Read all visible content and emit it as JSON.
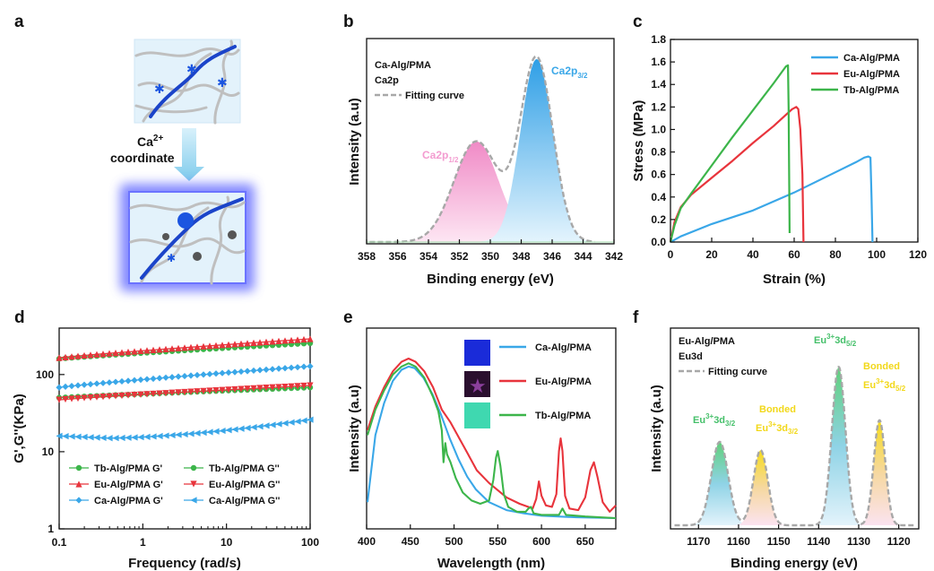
{
  "colors": {
    "ca": "#3aa7e8",
    "eu": "#e8343c",
    "tb": "#3cb54a",
    "fit": "#a8a8a8",
    "yellow": "#f2d81a",
    "fitlabel_green": "#45c06a"
  },
  "panel_labels": [
    "a",
    "b",
    "c",
    "d",
    "e",
    "f"
  ],
  "schematic": {
    "line1": "Ca",
    "sup": "2+",
    "line2": "coordinate",
    "icons": [
      "ion-cluster-icon",
      "polymer-network-icon",
      "coordination-glow-icon"
    ]
  },
  "chart_data": [
    {
      "id": "b",
      "type": "area",
      "xlabel": "Binding energy (eV)",
      "ylabel": "Intensity (a.u)",
      "xlim": [
        358,
        342
      ],
      "x_reversed": true,
      "xticks": [
        358,
        356,
        354,
        352,
        350,
        348,
        346,
        344,
        342
      ],
      "legend": [
        "Ca-Alg/PMA",
        "Ca2p",
        "Fitting curve"
      ],
      "peaks": [
        {
          "label": "Ca2p",
          "sub": "1/2",
          "center": 350.9,
          "height": 0.55,
          "width": 1.45,
          "color": "#f08ac6"
        },
        {
          "label": "Ca2p",
          "sub": "3/2",
          "center": 347.0,
          "height": 1.0,
          "width": 1.05,
          "color": "#3aa7e8"
        }
      ]
    },
    {
      "id": "c",
      "type": "line",
      "xlabel": "Strain (%)",
      "ylabel": "Stress (MPa)",
      "xlim": [
        0,
        120
      ],
      "ylim": [
        0,
        1.8
      ],
      "xticks": [
        0,
        20,
        40,
        60,
        80,
        100,
        120
      ],
      "yticks": [
        0.0,
        0.2,
        0.4,
        0.6,
        0.8,
        1.0,
        1.2,
        1.4,
        1.6,
        1.8
      ],
      "ytick_labels": [
        "0.0",
        "0.2",
        "0.4",
        "0.6",
        "0.8",
        "1.0",
        "1.2",
        "1.4",
        "1.6",
        "1.8"
      ],
      "legend_position": "top-right",
      "series": [
        {
          "name": "Ca-Alg/PMA",
          "color": "#3aa7e8",
          "points": [
            [
              0,
              0
            ],
            [
              5,
              0.05
            ],
            [
              20,
              0.16
            ],
            [
              40,
              0.28
            ],
            [
              60,
              0.44
            ],
            [
              80,
              0.62
            ],
            [
              90,
              0.71
            ],
            [
              94,
              0.75
            ],
            [
              96,
              0.76
            ],
            [
              97,
              0.75
            ],
            [
              97.5,
              0.4
            ],
            [
              98,
              0
            ]
          ]
        },
        {
          "name": "Eu-Alg/PMA",
          "color": "#e8343c",
          "points": [
            [
              0,
              0
            ],
            [
              2,
              0.18
            ],
            [
              5,
              0.31
            ],
            [
              10,
              0.42
            ],
            [
              20,
              0.57
            ],
            [
              30,
              0.72
            ],
            [
              40,
              0.88
            ],
            [
              50,
              1.03
            ],
            [
              56,
              1.13
            ],
            [
              59,
              1.18
            ],
            [
              61,
              1.2
            ],
            [
              62,
              1.18
            ],
            [
              63,
              1.0
            ],
            [
              64,
              0.6
            ],
            [
              64.5,
              0
            ]
          ]
        },
        {
          "name": "Tb-Alg/PMA",
          "color": "#3cb54a",
          "points": [
            [
              0,
              0
            ],
            [
              2,
              0.15
            ],
            [
              5,
              0.3
            ],
            [
              10,
              0.43
            ],
            [
              20,
              0.68
            ],
            [
              30,
              0.93
            ],
            [
              40,
              1.17
            ],
            [
              50,
              1.41
            ],
            [
              54,
              1.51
            ],
            [
              56,
              1.56
            ],
            [
              57,
              1.57
            ],
            [
              57.3,
              1.2
            ],
            [
              57.6,
              0.5
            ],
            [
              57.8,
              0.08
            ]
          ]
        }
      ]
    },
    {
      "id": "d",
      "type": "line",
      "yscale": "log",
      "xscale": "log",
      "xlabel": "Frequency (rad/s)",
      "ylabel": "G',G''(KPa)",
      "xlim": [
        0.1,
        100
      ],
      "ylim": [
        1,
        400
      ],
      "xtick_labels": [
        "0.1",
        "1",
        "10",
        "100"
      ],
      "ytick_labels": [
        "1",
        "10",
        "100"
      ],
      "legend_position": "bottom",
      "series": [
        {
          "name": "Tb-Alg/PMA G'",
          "color": "#3cb54a",
          "marker": "circle",
          "start": 160,
          "end": 255,
          "shape": "rise"
        },
        {
          "name": "Tb-Alg/PMA G''",
          "color": "#3cb54a",
          "marker": "circle",
          "start": 50,
          "end": 68,
          "shape": "rise"
        },
        {
          "name": "Eu-Alg/PMA G'",
          "color": "#e8343c",
          "marker": "triangle-up",
          "start": 165,
          "end": 290,
          "shape": "rise"
        },
        {
          "name": "Eu-Alg/PMA G''",
          "color": "#e8343c",
          "marker": "triangle-down",
          "start": 47,
          "end": 72,
          "shape": "rise"
        },
        {
          "name": "Ca-Alg/PMA G'",
          "color": "#3aa7e8",
          "marker": "diamond",
          "start": 68,
          "end": 128,
          "shape": "rise"
        },
        {
          "name": "Ca-Alg/PMA G''",
          "color": "#3aa7e8",
          "marker": "triangle-left",
          "start": 16,
          "end": 26,
          "shape": "dip"
        }
      ]
    },
    {
      "id": "e",
      "type": "line",
      "xlabel": "Wavelength (nm)",
      "ylabel": "Intensity (a.u)",
      "xlim": [
        400,
        685
      ],
      "xticks": [
        400,
        450,
        500,
        550,
        600,
        650
      ],
      "legend_position": "top-right",
      "insets": [
        "inset-blue-swatch",
        "inset-purple-star",
        "inset-green-swatch"
      ],
      "series": [
        {
          "name": "Ca-Alg/PMA",
          "color": "#3aa7e8",
          "points": [
            [
              401,
              0.1
            ],
            [
              410,
              0.52
            ],
            [
              420,
              0.72
            ],
            [
              430,
              0.86
            ],
            [
              440,
              0.93
            ],
            [
              448,
              0.95
            ],
            [
              455,
              0.94
            ],
            [
              465,
              0.88
            ],
            [
              475,
              0.78
            ],
            [
              485,
              0.65
            ],
            [
              495,
              0.5
            ],
            [
              505,
              0.37
            ],
            [
              515,
              0.26
            ],
            [
              525,
              0.18
            ],
            [
              540,
              0.1
            ],
            [
              560,
              0.05
            ],
            [
              580,
              0.03
            ],
            [
              600,
              0.015
            ],
            [
              640,
              0.005
            ],
            [
              685,
              0.0
            ]
          ]
        },
        {
          "name": "Eu-Alg/PMA",
          "color": "#e8343c",
          "points": [
            [
              401,
              0.55
            ],
            [
              410,
              0.7
            ],
            [
              420,
              0.82
            ],
            [
              430,
              0.92
            ],
            [
              440,
              0.98
            ],
            [
              448,
              1.0
            ],
            [
              456,
              0.98
            ],
            [
              466,
              0.92
            ],
            [
              476,
              0.82
            ],
            [
              486,
              0.68
            ],
            [
              496,
              0.6
            ],
            [
              506,
              0.5
            ],
            [
              516,
              0.4
            ],
            [
              526,
              0.3
            ],
            [
              540,
              0.22
            ],
            [
              560,
              0.13
            ],
            [
              575,
              0.09
            ],
            [
              585,
              0.07
            ],
            [
              590,
              0.06
            ],
            [
              594,
              0.12
            ],
            [
              597,
              0.23
            ],
            [
              600,
              0.14
            ],
            [
              605,
              0.08
            ],
            [
              612,
              0.07
            ],
            [
              617,
              0.15
            ],
            [
              620,
              0.42
            ],
            [
              622,
              0.5
            ],
            [
              624,
              0.42
            ],
            [
              627,
              0.14
            ],
            [
              632,
              0.06
            ],
            [
              642,
              0.05
            ],
            [
              650,
              0.13
            ],
            [
              656,
              0.3
            ],
            [
              660,
              0.35
            ],
            [
              664,
              0.26
            ],
            [
              670,
              0.1
            ],
            [
              678,
              0.04
            ],
            [
              685,
              0.08
            ]
          ]
        },
        {
          "name": "Tb-Alg/PMA",
          "color": "#3cb54a",
          "points": [
            [
              401,
              0.52
            ],
            [
              410,
              0.68
            ],
            [
              420,
              0.8
            ],
            [
              430,
              0.9
            ],
            [
              440,
              0.95
            ],
            [
              448,
              0.97
            ],
            [
              456,
              0.95
            ],
            [
              466,
              0.88
            ],
            [
              476,
              0.76
            ],
            [
              482,
              0.67
            ],
            [
              486,
              0.55
            ],
            [
              488,
              0.35
            ],
            [
              490,
              0.47
            ],
            [
              492,
              0.4
            ],
            [
              496,
              0.35
            ],
            [
              502,
              0.25
            ],
            [
              510,
              0.16
            ],
            [
              520,
              0.11
            ],
            [
              530,
              0.09
            ],
            [
              540,
              0.11
            ],
            [
              545,
              0.24
            ],
            [
              548,
              0.38
            ],
            [
              550,
              0.42
            ],
            [
              553,
              0.33
            ],
            [
              557,
              0.15
            ],
            [
              562,
              0.07
            ],
            [
              572,
              0.04
            ],
            [
              582,
              0.04
            ],
            [
              585,
              0.06
            ],
            [
              588,
              0.07
            ],
            [
              591,
              0.03
            ],
            [
              600,
              0.02
            ],
            [
              620,
              0.02
            ],
            [
              624,
              0.06
            ],
            [
              628,
              0.02
            ],
            [
              650,
              0.01
            ],
            [
              685,
              0.0
            ]
          ]
        }
      ]
    },
    {
      "id": "f",
      "type": "area",
      "xlabel": "Binding energy (eV)",
      "ylabel": "Intensity (a.u)",
      "xlim": [
        1177,
        1115
      ],
      "x_reversed": true,
      "xticks": [
        1170,
        1160,
        1150,
        1140,
        1130,
        1120
      ],
      "legend": [
        "Eu-Alg/PMA",
        "Eu3d",
        "Fitting curve"
      ],
      "peaks": [
        {
          "label": "Eu",
          "sup": "3+",
          "rest": "3d",
          "sub": "3/2",
          "center": 1164.7,
          "height": 0.5,
          "width": 2.1,
          "label_color": "#45c06a"
        },
        {
          "label": "Eu",
          "sup": "3+",
          "rest": "3d",
          "sub": "3/2",
          "prefix": "Bonded",
          "center": 1154.5,
          "height": 0.45,
          "width": 1.8,
          "label_color": "#f2d81a"
        },
        {
          "label": "Eu",
          "sup": "3+",
          "rest": "3d",
          "sub": "5/2",
          "center": 1135.0,
          "height": 0.95,
          "width": 1.7,
          "label_color": "#45c06a"
        },
        {
          "label": "Eu",
          "sup": "3+",
          "rest": "3d",
          "sub": "5/2",
          "prefix": "Bonded",
          "center": 1124.8,
          "height": 0.63,
          "width": 1.45,
          "label_color": "#f2d81a"
        }
      ]
    }
  ]
}
